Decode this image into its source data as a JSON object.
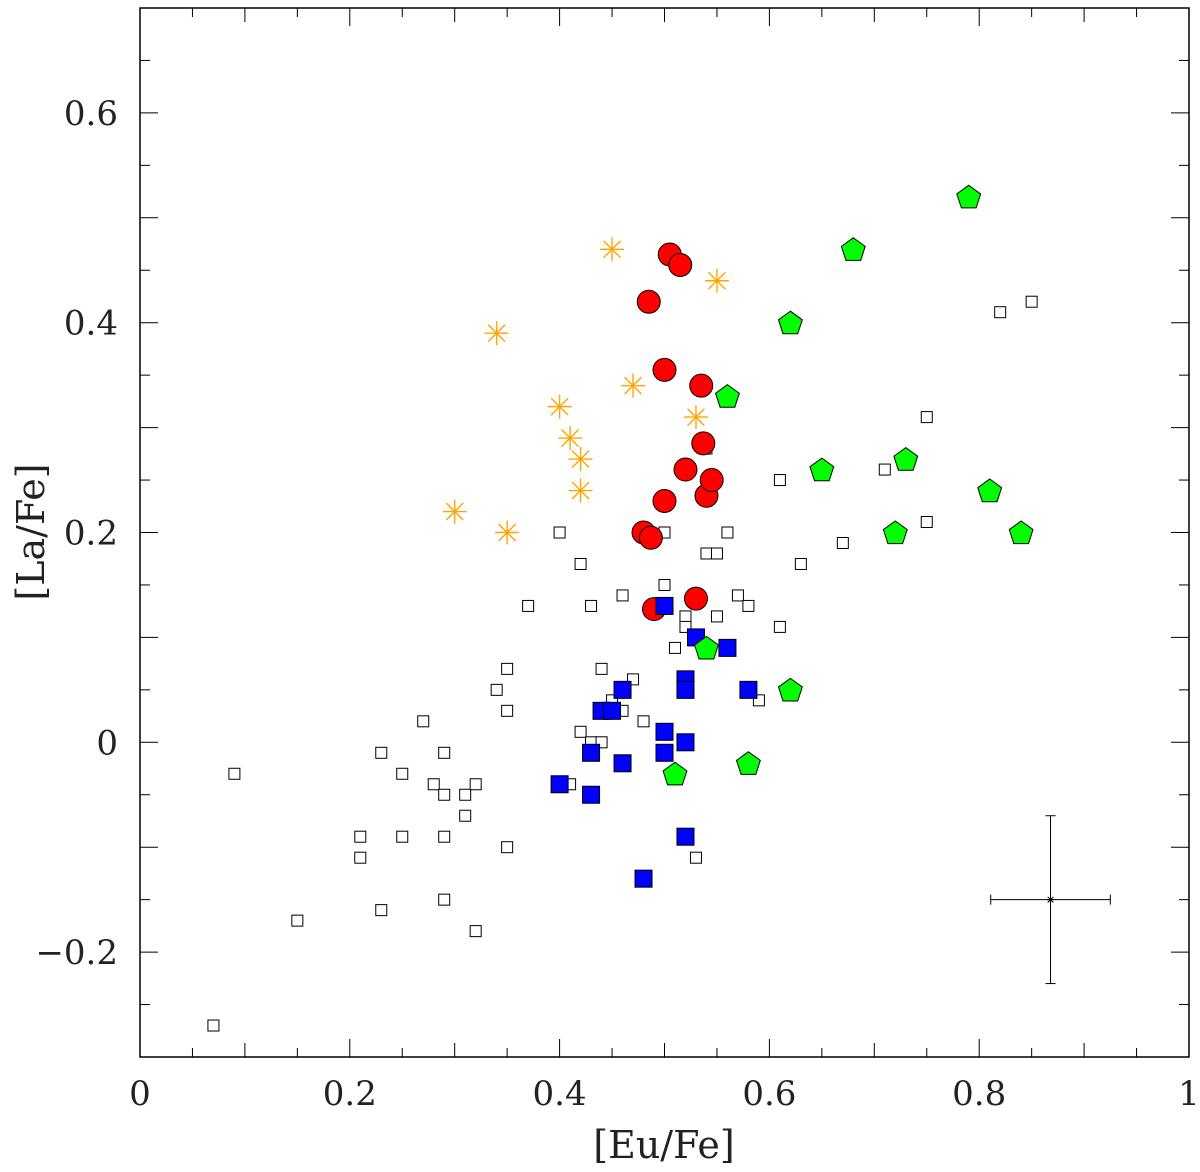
{
  "chart_data": {
    "type": "scatter",
    "xlabel": "[Eu/Fe]",
    "ylabel": "[La/Fe]",
    "xlim": [
      0,
      1
    ],
    "ylim": [
      -0.3,
      0.7
    ],
    "xticks": [
      0,
      0.2,
      0.4,
      0.6,
      0.8,
      1
    ],
    "xtick_labels": [
      "0",
      "0.2",
      "0.4",
      "0.6",
      "0.8",
      "1"
    ],
    "yticks": [
      -0.2,
      0,
      0.2,
      0.4,
      0.6
    ],
    "ytick_labels": [
      "−0.2",
      "0",
      "0.2",
      "0.4",
      "0.6"
    ],
    "grid": false,
    "series": [
      {
        "name": "open squares",
        "marker": "open-square",
        "color": "#000000",
        "points": [
          [
            0.07,
            -0.27
          ],
          [
            0.09,
            -0.03
          ],
          [
            0.15,
            -0.17
          ],
          [
            0.21,
            -0.09
          ],
          [
            0.21,
            -0.11
          ],
          [
            0.23,
            -0.01
          ],
          [
            0.23,
            -0.16
          ],
          [
            0.25,
            -0.03
          ],
          [
            0.25,
            -0.09
          ],
          [
            0.27,
            0.02
          ],
          [
            0.28,
            -0.04
          ],
          [
            0.29,
            -0.01
          ],
          [
            0.29,
            -0.05
          ],
          [
            0.29,
            -0.09
          ],
          [
            0.29,
            -0.15
          ],
          [
            0.31,
            -0.05
          ],
          [
            0.31,
            -0.07
          ],
          [
            0.32,
            -0.04
          ],
          [
            0.32,
            -0.18
          ],
          [
            0.34,
            0.05
          ],
          [
            0.35,
            0.07
          ],
          [
            0.35,
            0.03
          ],
          [
            0.35,
            -0.1
          ],
          [
            0.37,
            0.13
          ],
          [
            0.4,
            0.2
          ],
          [
            0.41,
            -0.04
          ],
          [
            0.42,
            0.17
          ],
          [
            0.42,
            0.01
          ],
          [
            0.43,
            0.13
          ],
          [
            0.43,
            0.0
          ],
          [
            0.44,
            0.0
          ],
          [
            0.44,
            0.07
          ],
          [
            0.45,
            0.04
          ],
          [
            0.46,
            0.14
          ],
          [
            0.46,
            0.03
          ],
          [
            0.47,
            0.06
          ],
          [
            0.48,
            0.02
          ],
          [
            0.5,
            0.2
          ],
          [
            0.5,
            0.15
          ],
          [
            0.51,
            0.09
          ],
          [
            0.52,
            0.12
          ],
          [
            0.52,
            0.11
          ],
          [
            0.53,
            -0.11
          ],
          [
            0.54,
            0.28
          ],
          [
            0.54,
            0.18
          ],
          [
            0.55,
            0.18
          ],
          [
            0.55,
            0.12
          ],
          [
            0.56,
            0.2
          ],
          [
            0.57,
            0.14
          ],
          [
            0.58,
            0.13
          ],
          [
            0.59,
            0.04
          ],
          [
            0.61,
            0.25
          ],
          [
            0.61,
            0.11
          ],
          [
            0.63,
            0.17
          ],
          [
            0.67,
            0.19
          ],
          [
            0.71,
            0.26
          ],
          [
            0.75,
            0.31
          ],
          [
            0.75,
            0.21
          ],
          [
            0.82,
            0.41
          ],
          [
            0.85,
            0.42
          ]
        ]
      },
      {
        "name": "orange asterisks",
        "marker": "asterisk",
        "color": "#ffa500",
        "points": [
          [
            0.3,
            0.22
          ],
          [
            0.34,
            0.39
          ],
          [
            0.35,
            0.2
          ],
          [
            0.4,
            0.32
          ],
          [
            0.41,
            0.29
          ],
          [
            0.42,
            0.27
          ],
          [
            0.42,
            0.24
          ],
          [
            0.45,
            0.47
          ],
          [
            0.47,
            0.34
          ],
          [
            0.53,
            0.31
          ],
          [
            0.55,
            0.44
          ]
        ]
      },
      {
        "name": "red circles",
        "marker": "filled-circle",
        "color": "#ff0000",
        "points": [
          [
            0.485,
            0.42
          ],
          [
            0.5,
            0.355
          ],
          [
            0.505,
            0.465
          ],
          [
            0.515,
            0.455
          ],
          [
            0.48,
            0.2
          ],
          [
            0.487,
            0.195
          ],
          [
            0.5,
            0.23
          ],
          [
            0.52,
            0.26
          ],
          [
            0.535,
            0.34
          ],
          [
            0.537,
            0.285
          ],
          [
            0.54,
            0.235
          ],
          [
            0.545,
            0.25
          ],
          [
            0.53,
            0.137
          ],
          [
            0.49,
            0.127
          ]
        ]
      },
      {
        "name": "blue squares",
        "marker": "filled-square",
        "color": "#0000ff",
        "points": [
          [
            0.4,
            -0.04
          ],
          [
            0.43,
            -0.01
          ],
          [
            0.43,
            -0.05
          ],
          [
            0.44,
            0.03
          ],
          [
            0.45,
            0.03
          ],
          [
            0.46,
            0.05
          ],
          [
            0.46,
            -0.02
          ],
          [
            0.48,
            -0.13
          ],
          [
            0.5,
            0.13
          ],
          [
            0.5,
            0.01
          ],
          [
            0.5,
            -0.01
          ],
          [
            0.52,
            0.06
          ],
          [
            0.52,
            0.05
          ],
          [
            0.52,
            0.0
          ],
          [
            0.52,
            -0.09
          ],
          [
            0.53,
            0.1
          ],
          [
            0.56,
            0.09
          ],
          [
            0.58,
            0.05
          ]
        ]
      },
      {
        "name": "green pentagons",
        "marker": "filled-pentagon",
        "color": "#00ff00",
        "points": [
          [
            0.51,
            -0.03
          ],
          [
            0.54,
            0.09
          ],
          [
            0.56,
            0.33
          ],
          [
            0.58,
            -0.02
          ],
          [
            0.62,
            0.4
          ],
          [
            0.62,
            0.05
          ],
          [
            0.65,
            0.26
          ],
          [
            0.68,
            0.47
          ],
          [
            0.72,
            0.2
          ],
          [
            0.73,
            0.27
          ],
          [
            0.79,
            0.52
          ],
          [
            0.81,
            0.24
          ],
          [
            0.84,
            0.2
          ]
        ]
      }
    ],
    "error_bar": {
      "point": [
        0.868,
        -0.15
      ],
      "x_range": [
        0.811,
        0.925
      ],
      "y_range": [
        -0.23,
        -0.07
      ]
    }
  }
}
